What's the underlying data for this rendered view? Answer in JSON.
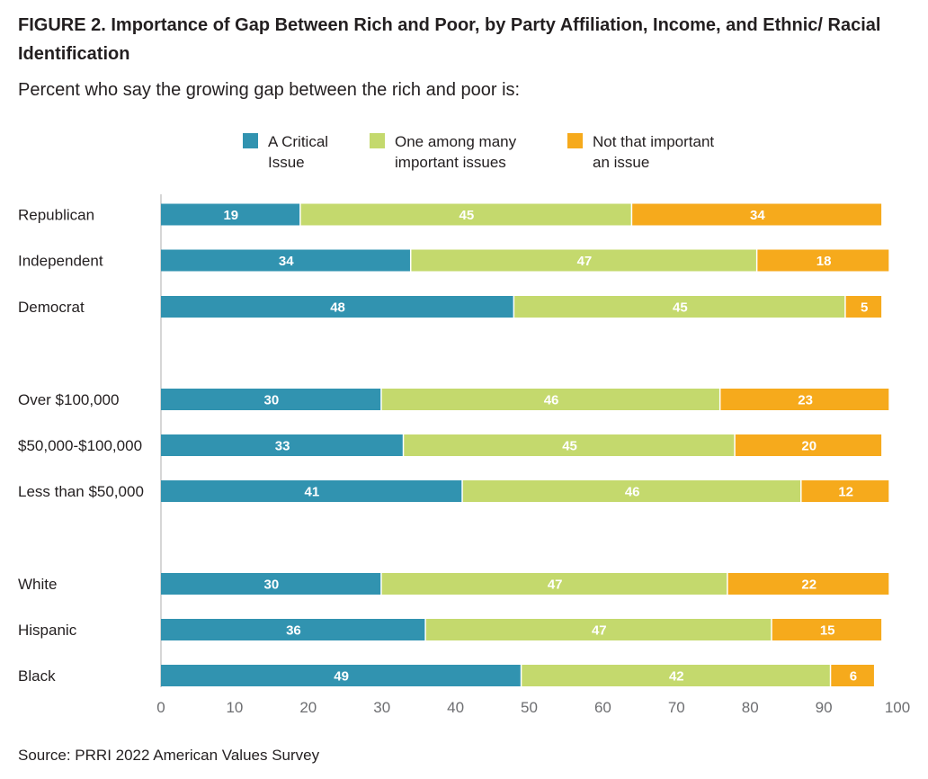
{
  "title": "FIGURE 2. Importance of Gap Between Rich and Poor, by Party Affiliation, Income, and Ethnic/ Racial Identification",
  "subtitle": "Percent who say the growing gap between the rich and poor is:",
  "source": "Source: PRRI 2022 American Values Survey",
  "colors": {
    "critical": "#3193b0",
    "one_among_many": "#c4d96d",
    "not_important": "#f6aa1c",
    "axis": "#c8c8c8",
    "tick_text": "#6d6e71",
    "bar_label": "#ffffff"
  },
  "chart_data": {
    "type": "bar",
    "orientation": "horizontal",
    "stacked": true,
    "title": "FIGURE 2. Importance of Gap Between Rich and Poor, by Party Affiliation, Income, and Ethnic/ Racial Identification",
    "subtitle": "Percent who say the growing gap between the rich and poor is:",
    "xlabel": "",
    "ylabel": "",
    "xlim": [
      0,
      100
    ],
    "xticks": [
      0,
      10,
      20,
      30,
      40,
      50,
      60,
      70,
      80,
      90,
      100
    ],
    "grid": false,
    "legend_position": "top-center",
    "categories": [
      "Republican",
      "Independent",
      "Democrat",
      "Over $100,000",
      "$50,000-$100,000",
      "Less than $50,000",
      "White",
      "Hispanic",
      "Black"
    ],
    "groups": [
      [
        "Republican",
        "Independent",
        "Democrat"
      ],
      [
        "Over $100,000",
        "$50,000-$100,000",
        "Less than $50,000"
      ],
      [
        "White",
        "Hispanic",
        "Black"
      ]
    ],
    "series": [
      {
        "name": "A Critical\nIssue",
        "color": "#3193b0",
        "values": [
          19,
          34,
          48,
          30,
          33,
          41,
          30,
          36,
          49
        ]
      },
      {
        "name": "One among many\nimportant issues",
        "color": "#c4d96d",
        "values": [
          45,
          47,
          45,
          46,
          45,
          46,
          47,
          47,
          42
        ]
      },
      {
        "name": "Not that important\nan issue",
        "color": "#f6aa1c",
        "values": [
          34,
          18,
          5,
          23,
          20,
          12,
          22,
          15,
          6
        ]
      }
    ]
  }
}
